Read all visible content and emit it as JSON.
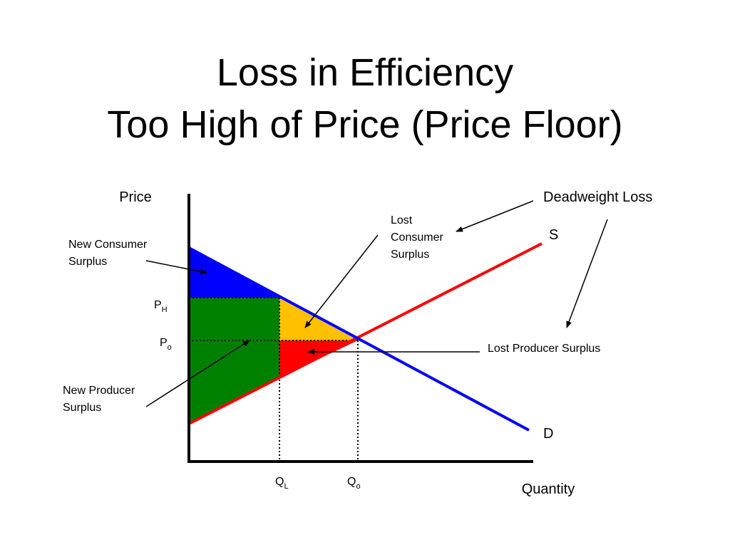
{
  "title": {
    "line1": "Loss in Efficiency",
    "line2": "Too High of Price (Price Floor)"
  },
  "axes": {
    "y_label": "Price",
    "x_label": "Quantity"
  },
  "curves": {
    "supply_label": "S",
    "demand_label": "D"
  },
  "ticks": {
    "price_high": {
      "base": "P",
      "sub": "H"
    },
    "price_equilibrium": {
      "base": "P",
      "sub": "o"
    },
    "quantity_low": {
      "base": "Q",
      "sub": "L"
    },
    "quantity_equilibrium": {
      "base": "Q",
      "sub": "o"
    }
  },
  "annotations": {
    "new_consumer_surplus": [
      "New Consumer",
      "Surplus"
    ],
    "new_producer_surplus": [
      "New Producer",
      "Surplus"
    ],
    "lost_consumer_surplus": [
      "Lost",
      "Consumer",
      "Surplus"
    ],
    "lost_producer_surplus": "Lost Producer Surplus",
    "deadweight_loss": "Deadweight Loss"
  },
  "colors": {
    "new_consumer_surplus": "#0000ff",
    "new_producer_surplus": "#008000",
    "lost_consumer_surplus": "#ffc000",
    "lost_producer_surplus": "#ff0000",
    "supply_curve": "#ff0000",
    "demand_curve": "#0000ff"
  }
}
